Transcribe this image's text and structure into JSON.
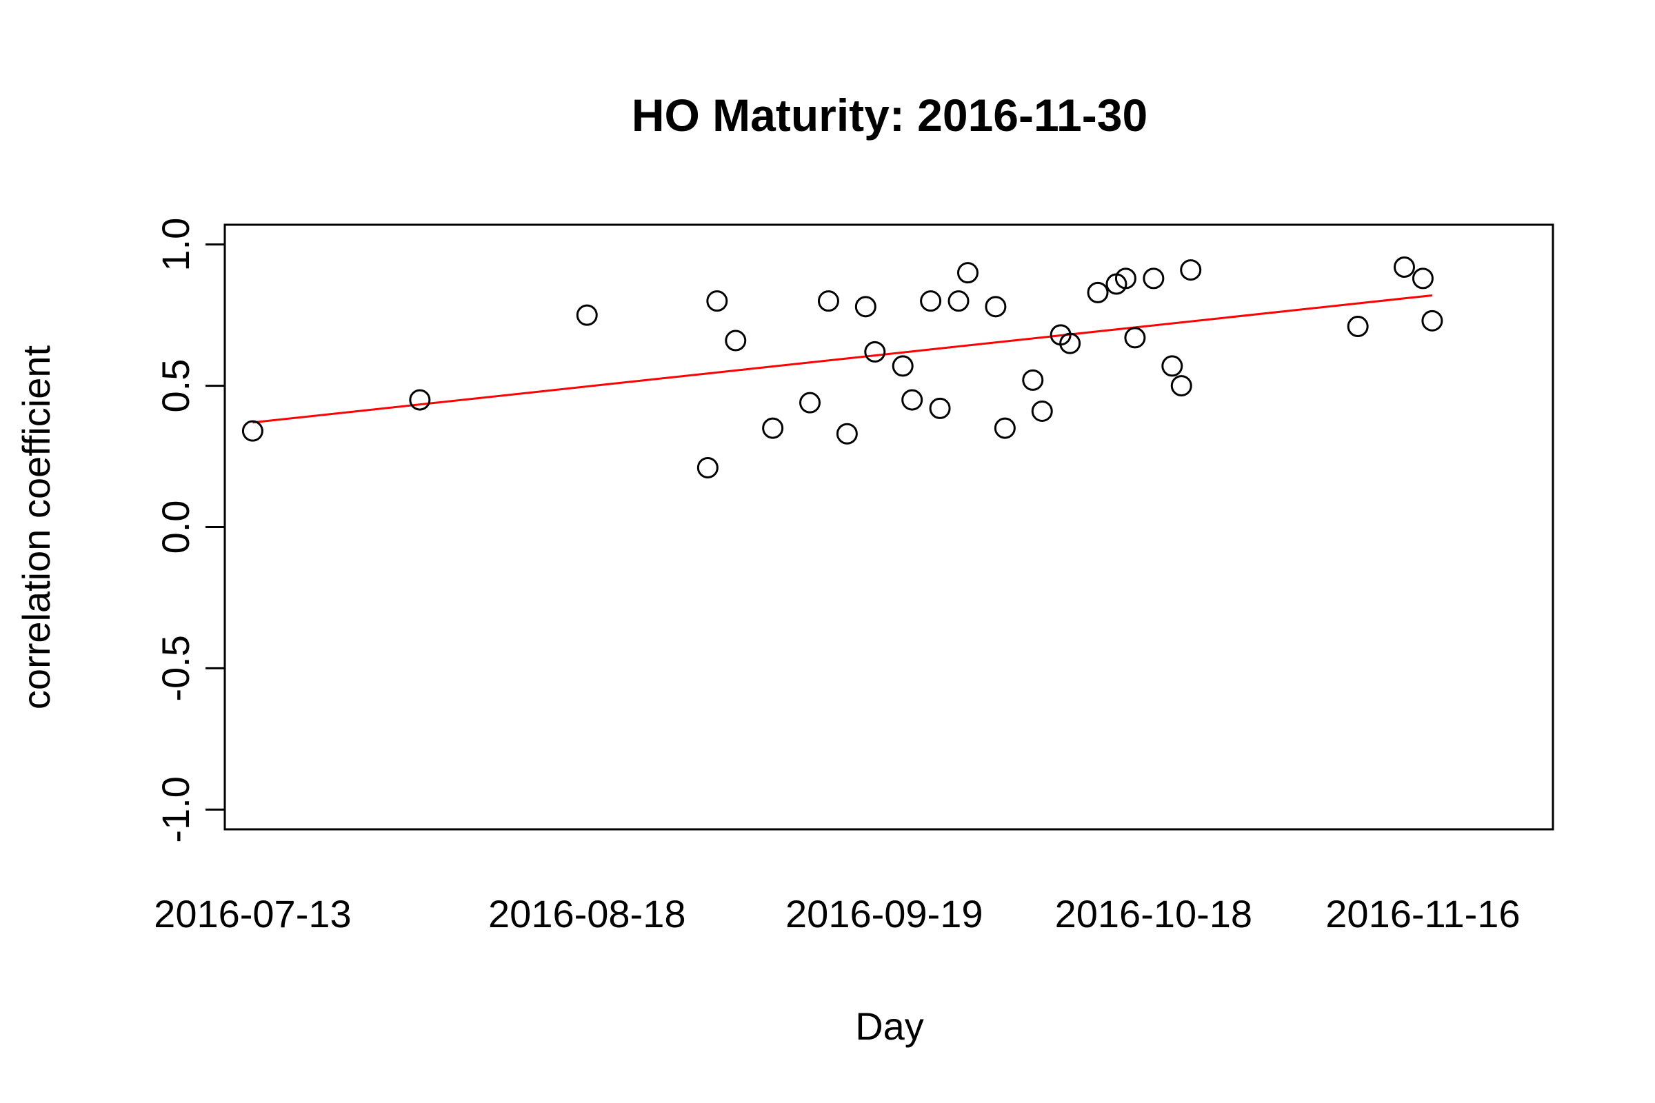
{
  "chart_data": {
    "type": "scatter",
    "title": "HO Maturity: 2016-11-30",
    "xlabel": "Day",
    "ylabel": "correlation coefficient",
    "xlim": [
      "2016-07-10",
      "2016-11-30"
    ],
    "ylim": [
      -1.0,
      1.0
    ],
    "x_ticks": [
      "2016-07-13",
      "2016-08-18",
      "2016-09-19",
      "2016-10-18",
      "2016-11-16"
    ],
    "y_ticks": [
      -1.0,
      -0.5,
      0.0,
      0.5,
      1.0
    ],
    "y_tick_labels": [
      "-1.0",
      "-0.5",
      "0.0",
      "0.5",
      "1.0"
    ],
    "grid": false,
    "legend": "none",
    "points": [
      {
        "x": "2016-07-13",
        "y": 0.34
      },
      {
        "x": "2016-07-31",
        "y": 0.45
      },
      {
        "x": "2016-08-18",
        "y": 0.75
      },
      {
        "x": "2016-08-31",
        "y": 0.21
      },
      {
        "x": "2016-09-01",
        "y": 0.8
      },
      {
        "x": "2016-09-03",
        "y": 0.66
      },
      {
        "x": "2016-09-07",
        "y": 0.35
      },
      {
        "x": "2016-09-11",
        "y": 0.44
      },
      {
        "x": "2016-09-13",
        "y": 0.8
      },
      {
        "x": "2016-09-15",
        "y": 0.33
      },
      {
        "x": "2016-09-17",
        "y": 0.78
      },
      {
        "x": "2016-09-18",
        "y": 0.62
      },
      {
        "x": "2016-09-21",
        "y": 0.57
      },
      {
        "x": "2016-09-22",
        "y": 0.45
      },
      {
        "x": "2016-09-24",
        "y": 0.8
      },
      {
        "x": "2016-09-25",
        "y": 0.42
      },
      {
        "x": "2016-09-27",
        "y": 0.8
      },
      {
        "x": "2016-09-28",
        "y": 0.9
      },
      {
        "x": "2016-10-01",
        "y": 0.78
      },
      {
        "x": "2016-10-02",
        "y": 0.35
      },
      {
        "x": "2016-10-05",
        "y": 0.52
      },
      {
        "x": "2016-10-06",
        "y": 0.41
      },
      {
        "x": "2016-10-08",
        "y": 0.68
      },
      {
        "x": "2016-10-09",
        "y": 0.65
      },
      {
        "x": "2016-10-12",
        "y": 0.83
      },
      {
        "x": "2016-10-14",
        "y": 0.86
      },
      {
        "x": "2016-10-15",
        "y": 0.88
      },
      {
        "x": "2016-10-16",
        "y": 0.67
      },
      {
        "x": "2016-10-18",
        "y": 0.88
      },
      {
        "x": "2016-10-20",
        "y": 0.57
      },
      {
        "x": "2016-10-21",
        "y": 0.5
      },
      {
        "x": "2016-10-22",
        "y": 0.91
      },
      {
        "x": "2016-11-09",
        "y": 0.71
      },
      {
        "x": "2016-11-14",
        "y": 0.92
      },
      {
        "x": "2016-11-16",
        "y": 0.88
      },
      {
        "x": "2016-11-17",
        "y": 0.73
      }
    ],
    "trend_line": {
      "color": "#ff0000",
      "from": {
        "x": "2016-07-13",
        "y": 0.37
      },
      "to": {
        "x": "2016-11-17",
        "y": 0.82
      }
    },
    "point_color": "#000000"
  }
}
